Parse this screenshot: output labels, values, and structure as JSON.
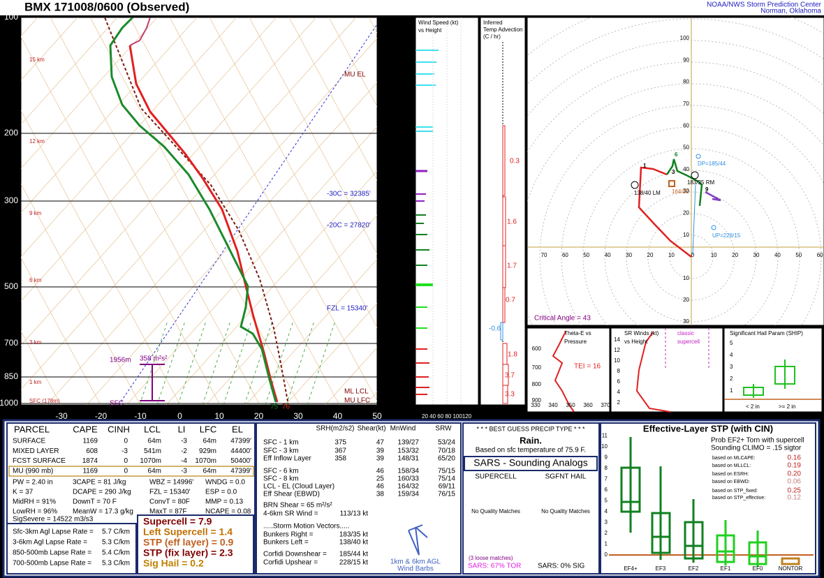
{
  "header": {
    "title": "BMX   171008/0600  (Observed)",
    "org": "NOAA/NWS Storm Prediction Center",
    "location": "Norman, Oklahoma"
  },
  "skewt": {
    "pressure_labels": [
      "100",
      "200",
      "300",
      "500",
      "700",
      "850",
      "1000"
    ],
    "temp_labels": [
      "-30",
      "-20",
      "-10",
      "0",
      "10",
      "20",
      "30",
      "40",
      "50"
    ],
    "height_labels": [
      "15 km",
      "12 km",
      "9 km",
      "6 km",
      "3 km",
      "1 km",
      "SFC (178m)"
    ],
    "mu_el": "MU EL",
    "minus30": "-30C = 32385'",
    "minus20": "-20C = 27820'",
    "fzl": "FZL = 15340'",
    "ml_lcl": "ML LCL",
    "mu_lfc": "MU LFC",
    "inflow_top": "1956m",
    "inflow_srh": "358 m²s²",
    "sfc": "SFC",
    "sfc_dewpoint": "75",
    "sfc_temp": "76"
  },
  "wind_panel": {
    "title": [
      "Wind Speed (kt)",
      "vs Height"
    ],
    "axis": "20 40 60 80 100120"
  },
  "advection_panel": {
    "title": [
      "Inferred",
      "Temp Advection",
      "(C / hr)"
    ],
    "values": [
      "0.3",
      "1.6",
      "1.7",
      "0.7",
      "-0.6",
      "1.8",
      "3.7",
      "3.3"
    ]
  },
  "hodograph": {
    "x_labels": [
      "70",
      "60",
      "50",
      "40",
      "30",
      "20",
      "10",
      "0",
      "10",
      "20",
      "30",
      "40",
      "50",
      "60"
    ],
    "y_labels": [
      "100",
      "90",
      "80",
      "70",
      "60",
      "50",
      "40",
      "30",
      "20",
      "10"
    ],
    "y_labels_below": [
      "10",
      "20",
      "30"
    ],
    "dp": "DP=185/44",
    "rm": "183/35 RM",
    "lm": "138/40 LM",
    "mean": "164/32",
    "up": "UP=228/15",
    "critical_angle": "Critical Angle = 43",
    "points": [
      "1",
      "6",
      "3",
      "9"
    ]
  },
  "theta_e": {
    "title": [
      "Theta-E vs",
      "Pressure"
    ],
    "y_labels": [
      "600",
      "700",
      "800",
      "900"
    ],
    "x_labels": [
      "330",
      "340",
      "350",
      "360",
      "370"
    ],
    "tei": "TEI = 16"
  },
  "sr_winds": {
    "title": [
      "SR Winds (kt)",
      "vs Height"
    ],
    "y_labels": [
      "14",
      "12",
      "10",
      "8",
      "6",
      "4",
      "2"
    ],
    "classic": [
      "classic",
      "supercell"
    ]
  },
  "ship": {
    "title": "Significant Hail Param (SHIP)",
    "y_labels": [
      "5",
      "4",
      "3",
      "2",
      "1"
    ],
    "x_labels": [
      "< 2 in",
      ">= 2 in"
    ]
  },
  "parcel": {
    "header": [
      "PARCEL",
      "CAPE",
      "CINH",
      "LCL",
      "LI",
      "LFC",
      "EL"
    ],
    "rows": [
      [
        "SURFACE",
        "1169",
        "0",
        "64m",
        "-3",
        "64m",
        "47399'"
      ],
      [
        "MIXED LAYER",
        "608",
        "-3",
        "541m",
        "-2",
        "929m",
        "44400'"
      ],
      [
        "FCST SURFACE",
        "1874",
        "0",
        "1070m",
        "-4",
        "1070m",
        "50400'"
      ],
      [
        "MU (990 mb)",
        "1169",
        "0",
        "64m",
        "-3",
        "64m",
        "47399'"
      ]
    ],
    "indices": [
      [
        "PW = 2.40 in",
        "3CAPE = 81 J/kg",
        "WBZ = 14996'",
        "WNDG = 0.0"
      ],
      [
        "K = 37",
        "DCAPE = 290 J/kg",
        "FZL = 15340'",
        "ESP = 0.0"
      ],
      [
        "MidRH = 91%",
        "DownT = 70 F",
        "ConvT = 80F",
        "MMP = 0.13"
      ],
      [
        "LowRH = 96%",
        "MeanW = 17.3 g/kg",
        "MaxT = 87F",
        "NCAPE = 0.08"
      ]
    ],
    "sigsevere": "SigSevere = 14522 m3/s3",
    "lapse_rates": [
      [
        "Sfc-3km Agl Lapse Rate =",
        "5.7 C/km"
      ],
      [
        "3-6km Agl Lapse Rate =",
        "5.3 C/km"
      ],
      [
        "850-500mb Lapse Rate =",
        "5.4 C/km"
      ],
      [
        "700-500mb Lapse Rate =",
        "5.3 C/km"
      ]
    ],
    "composites": [
      "Supercell = 7.9",
      "Left Supercell = 1.4",
      "STP (eff layer) = 0.9",
      "STP (fix layer) = 2.3",
      "Sig Hail = 0.2"
    ]
  },
  "kinematics": {
    "header": [
      "SRH(m2/s2)",
      "Shear(kt)",
      "MnWind",
      "SRW"
    ],
    "rows": [
      [
        "SFC - 1 km",
        "375",
        "47",
        "139/27",
        "53/24"
      ],
      [
        "SFC - 3 km",
        "367",
        "39",
        "153/32",
        "70/18"
      ],
      [
        "Eff Inflow Layer",
        "358",
        "39",
        "148/31",
        "65/20"
      ],
      [
        "SFC - 6 km",
        null,
        "46",
        "158/34",
        "75/15"
      ],
      [
        "SFC - 8 km",
        null,
        "25",
        "160/33",
        "75/14"
      ],
      [
        "LCL - EL (Cloud Layer)",
        null,
        "46",
        "164/32",
        "69/11"
      ],
      [
        "Eff Shear (EBWD)",
        null,
        "38",
        "159/34",
        "76/15"
      ]
    ],
    "brn": "BRN Shear = 65 m²/s²",
    "sr_wind": [
      "4-6km SR Wind =",
      "113/13 kt"
    ],
    "storm_motion": ".....Storm Motion Vectors.....",
    "motions": [
      [
        "Bunkers Right =",
        "183/35 kt"
      ],
      [
        "Bunkers Left =",
        "138/40 kt"
      ],
      [
        "Corfidi Downshear =",
        "185/44 kt"
      ],
      [
        "Corfidi Upshear =",
        "228/15 kt"
      ]
    ],
    "barbs": [
      "1km & 6km AGL",
      "Wind Barbs"
    ]
  },
  "precip": {
    "title": "* * * BEST GUESS PRECIP TYPE * * *",
    "type": "Rain.",
    "basis": "Based on sfc temperature of 75.9 F.",
    "sars_title": "SARS - Sounding Analogs",
    "supercell": "SUPERCELL",
    "hail": "SGFNT HAIL",
    "no_match": [
      "No Quality Matches",
      "No Quality Matches"
    ],
    "loose": "(3 loose matches)",
    "tor": "SARS: 67% TOR",
    "sig": "SARS: 0% SIG"
  },
  "stp": {
    "title": "Effective-Layer STP (with CIN)",
    "prob": [
      "Prob EF2+ Torn with supercell",
      "Sounding CLIMO = .15 sigtor"
    ],
    "based": [
      [
        "based on MLCAPE:",
        "0.16"
      ],
      [
        "based on MLLCL:",
        "0.19"
      ],
      [
        "based on ESRH:",
        "0.20"
      ],
      [
        "based on EBWD:",
        "0.06"
      ],
      [
        "based on STP_fixed:",
        "0.25"
      ],
      [
        "based on STP_effective:",
        "0.12"
      ]
    ],
    "y_labels": [
      "0",
      "1",
      "2",
      "3",
      "4",
      "5",
      "6",
      "7",
      "8",
      "9",
      "10",
      "11"
    ],
    "x_labels": [
      "EF4+",
      "EF3",
      "EF2",
      "EF1",
      "EF0",
      "NONTOR"
    ]
  }
}
